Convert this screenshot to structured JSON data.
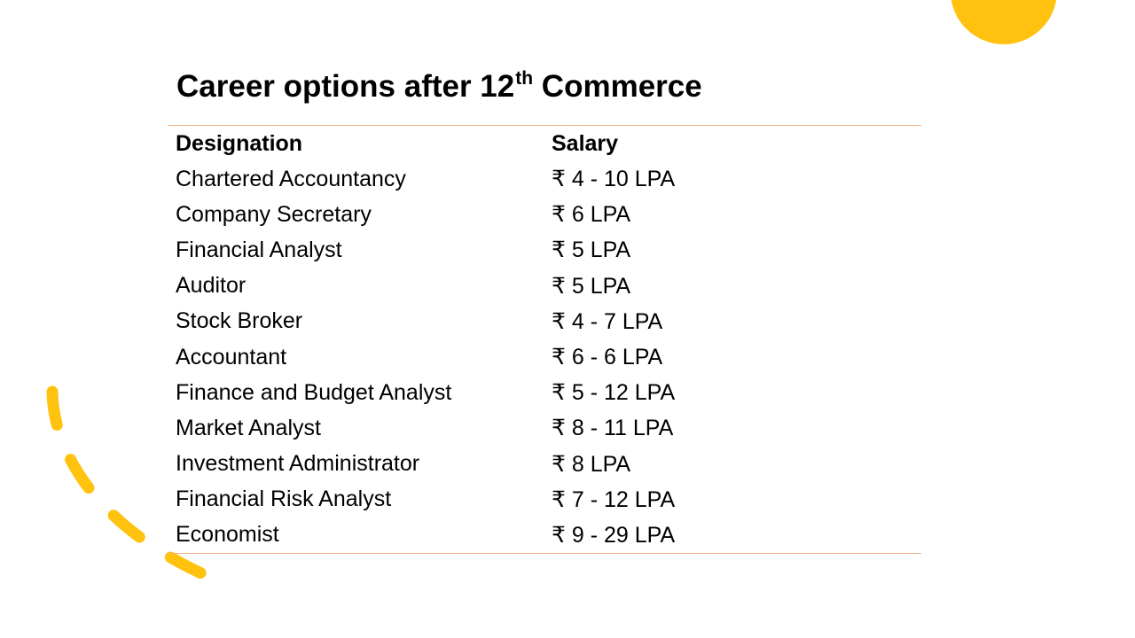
{
  "slide": {
    "title_main": "Career options after 12",
    "title_sup": "th",
    "title_rest": " Commerce"
  },
  "table": {
    "headers": [
      "Designation",
      "Salary"
    ],
    "rows": [
      [
        "Chartered Accountancy",
        "₹ 4 - 10 LPA"
      ],
      [
        "Company Secretary",
        "₹ 6 LPA"
      ],
      [
        "Financial Analyst",
        "₹ 5 LPA"
      ],
      [
        "Auditor",
        "₹ 5 LPA"
      ],
      [
        "Stock Broker",
        "₹ 4 - 7 LPA"
      ],
      [
        "Accountant",
        "₹ 6 - 6 LPA"
      ],
      [
        "Finance and Budget Analyst",
        "₹ 5 - 12 LPA"
      ],
      [
        "Market Analyst",
        "₹ 8 - 11 LPA"
      ],
      [
        "Investment Administrator",
        "₹ 8 LPA"
      ],
      [
        "Financial Risk Analyst",
        "₹ 7 - 12 LPA"
      ],
      [
        "Economist",
        "₹ 9 - 29 LPA"
      ]
    ]
  },
  "colors": {
    "accent": "#FFC20E",
    "rule": "#F4B183"
  }
}
